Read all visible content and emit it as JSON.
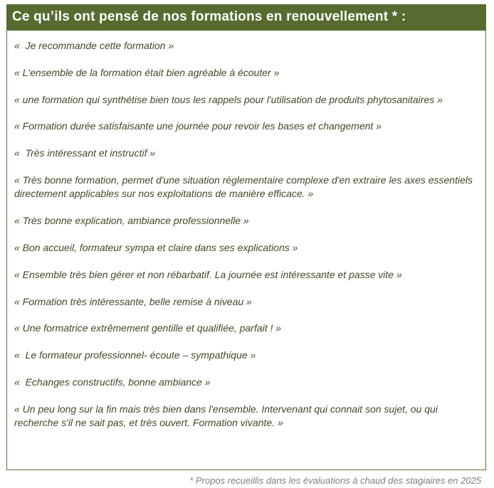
{
  "header": {
    "title": "Ce qu’ils ont pensé de nos formations en renouvellement * :"
  },
  "quotes": [
    "«  Je recommande cette formation »",
    "« L'ensemble de la formation était bien agréable à écouter »",
    "« une formation qui synthétise bien tous les rappels pour l'utilisation de produits phytosanitaires »",
    "« Formation durée satisfaisante une journée pour revoir les bases et changement »",
    "«  Très intéressant et instructif »",
    "« Très bonne formation, permet d'une situation règlementaire complexe d'en extraire les axes essentiels directement applicables sur nos exploitations de manière efficace. »",
    "« Très bonne explication, ambiance professionnelle »",
    "« Bon accueil, formateur sympa et claire dans ses explications »",
    "« Ensemble très bien gérer et non rébarbatif. La journée est intéressante et passe vite »",
    "« Formation très intéressante, belle remise à niveau »",
    "« Une formatrice extrêmement gentille et qualifiée, parfait ! »",
    "«  Le formateur professionnel- écoute – sympathique »",
    "«  Echanges constructifs, bonne ambiance »",
    "« Un peu long sur la fin mais très bien dans l'ensemble. Intervenant qui connait son sujet, ou qui recherche s'il ne sait pas, et très ouvert. Formation vivante. »"
  ],
  "footnote": {
    "text": "* Propos recueillis dans les évaluations à chaud des stagiaires en 2025"
  },
  "colors": {
    "header_bg": "#566b2f",
    "header_text": "#ffffff",
    "box_border": "#5d7133",
    "quote_text": "#40492a",
    "footnote_text": "#808080"
  }
}
